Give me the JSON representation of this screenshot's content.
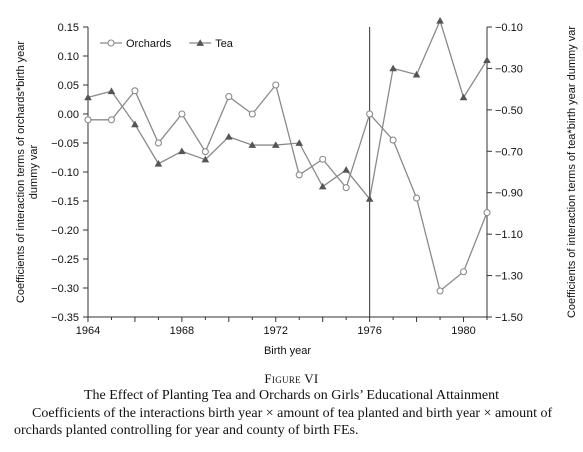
{
  "chart_data": {
    "type": "line",
    "x": [
      1964,
      1965,
      1966,
      1967,
      1968,
      1969,
      1970,
      1971,
      1972,
      1973,
      1974,
      1975,
      1976,
      1977,
      1978,
      1979,
      1980,
      1981
    ],
    "series": [
      {
        "name": "Orchards",
        "axis": "left",
        "marker": "open-circle",
        "values": [
          -0.01,
          -0.01,
          0.04,
          -0.05,
          0.0,
          -0.065,
          0.03,
          0.0,
          0.05,
          -0.105,
          -0.078,
          -0.127,
          0.0,
          -0.045,
          -0.145,
          -0.305,
          -0.272,
          -0.17
        ]
      },
      {
        "name": "Tea",
        "axis": "right",
        "marker": "filled-triangle",
        "values": [
          -0.44,
          -0.41,
          -0.57,
          -0.76,
          -0.7,
          -0.74,
          -0.63,
          -0.67,
          -0.67,
          -0.66,
          -0.87,
          -0.79,
          -0.93,
          -0.3,
          -0.33,
          -0.07,
          -0.44,
          -0.26
        ]
      }
    ],
    "xlabel": "Birth year",
    "ylabel_left": "Coefficients of interaction terms of orchards*birth year dummy var",
    "ylabel_right": "Coefficients of interaction terms of tea*birth year dummy var",
    "xlim": [
      1964,
      1981
    ],
    "ylim_left": [
      -0.35,
      0.15
    ],
    "ylim_right": [
      -1.5,
      -0.1
    ],
    "x_ticks": [
      "1964",
      "1968",
      "1972",
      "1976",
      "1980"
    ],
    "y_ticks_left": [
      "0.15",
      "0.10",
      "0.05",
      "0.00",
      "−0.05",
      "−0.10",
      "−0.15",
      "−0.20",
      "−0.25",
      "−0.30",
      "−0.35"
    ],
    "y_ticks_right": [
      "−0.10",
      "−0.30",
      "−0.50",
      "−0.70",
      "−0.90",
      "−1.10",
      "−1.30",
      "−1.50"
    ],
    "vertical_line_x": 1976,
    "legend_position": "top-left",
    "grid": false,
    "colors": {
      "lines": "#8a8a8a",
      "axes": "#333333",
      "text": "#111111"
    }
  },
  "caption": {
    "figure_label": "Figure VI",
    "title": "The Effect of Planting Tea and Orchards on Girls’ Educational Attainment",
    "note": "Coefficients of the interactions birth year × amount of tea planted and birth year × amount of orchards planted controlling for year and county of birth FEs."
  }
}
